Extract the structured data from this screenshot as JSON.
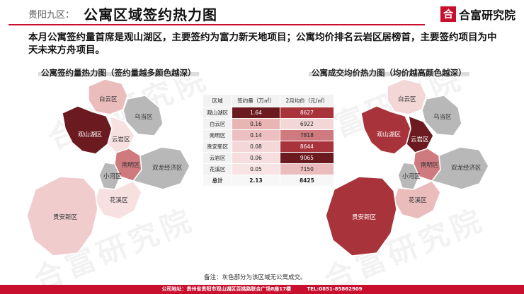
{
  "header": {
    "section": "贵阳九区：",
    "title": "公寓区域签约热力图",
    "logo_mark": "合",
    "logo_name": "合富研究院"
  },
  "summary": "本月公寓签约量首席是观山湖区，主要签约为富力新天地项目；公寓均价排名云岩区居榜首，主要签约项目为中天未来方舟项目。",
  "captions": {
    "left": "公寓签约量热力图（签约量越多颜色越深）",
    "right": "公寓成交均价热力图（均价越高颜色越深）"
  },
  "watermark": "合富研究院",
  "map_labels": {
    "baiyun": "白云区",
    "guanshanhu": "观山湖区",
    "wudang": "乌当区",
    "yunyan": "云岩区",
    "nanming": "南明区",
    "xiaohe": "小河区",
    "shuanglong": "双龙经济区",
    "huaxi": "花溪区",
    "qianxin": "贵安新区"
  },
  "table": {
    "headers": [
      "区域",
      "签约量（万㎡）",
      "2月均价（元/㎡）"
    ],
    "rows": [
      {
        "district": "观山湖区",
        "volume": "1.64",
        "price": "8627",
        "volume_color": "#6b1a1f",
        "price_color": "#a8333a"
      },
      {
        "district": "白云区",
        "volume": "0.16",
        "price": "6922",
        "volume_color": "#e8b4b4",
        "price_color": "#f3d6d6"
      },
      {
        "district": "南明区",
        "volume": "0.14",
        "price": "7818",
        "volume_color": "#ecc0c0",
        "price_color": "#cf7a7f"
      },
      {
        "district": "贵安新区",
        "volume": "0.08",
        "price": "8644",
        "volume_color": "#f4d8d8",
        "price_color": "#a8333a"
      },
      {
        "district": "云岩区",
        "volume": "0.06",
        "price": "9065",
        "volume_color": "#f6dede",
        "price_color": "#6b1a1f"
      },
      {
        "district": "花溪区",
        "volume": "0.05",
        "price": "7150",
        "volume_color": "#f8e4e4",
        "price_color": "#ebbcbc"
      }
    ],
    "total": {
      "label": "总计",
      "volume": "2.13",
      "price": "8425"
    }
  },
  "note": "备注：灰色部分为该区域无公寓成交。",
  "footer": {
    "address": "公司地址：贵州省贵阳市观山湖区百挑路联合广场8座17楼",
    "phone": "TEL:0851-85862909"
  },
  "colors": {
    "accent": "#c8102e",
    "darkest": "#6b1a1f",
    "dark": "#a8333a",
    "medium": "#cf7a7f",
    "light": "#ebbcbc",
    "lightest": "#f6e0e0",
    "gray": "#b8b8b8"
  }
}
